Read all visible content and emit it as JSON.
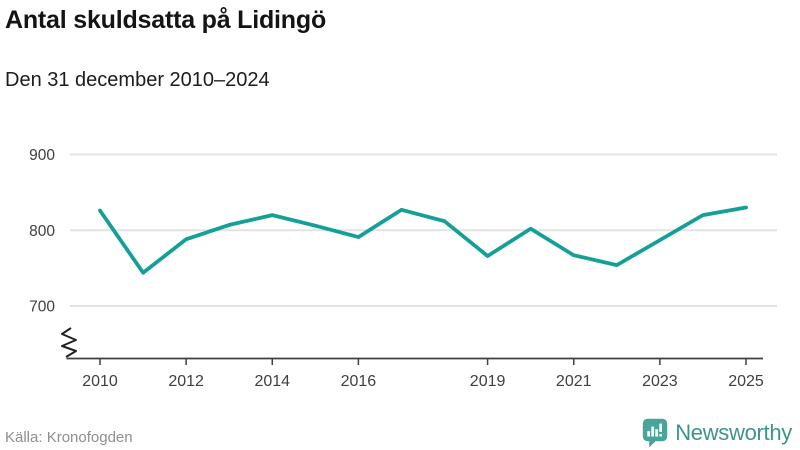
{
  "header": {
    "title": "Antal skuldsatta på Lidingö",
    "subtitle": "Den 31 december 2010–2024"
  },
  "footer": {
    "source": "Källa: Kronofogden",
    "brand": "Newsworthy"
  },
  "colors": {
    "line": "#14a097",
    "brand_teal": "#4aa49a",
    "brand_text": "#3e948b",
    "grid": "#e3e3e3",
    "axis": "#3f3f3f",
    "tick_text": "#404040",
    "muted": "#8e8e8e"
  },
  "chart_data": {
    "type": "line",
    "title": "Antal skuldsatta på Lidingö",
    "subtitle": "Den 31 december 2010–2024",
    "series_name": "Antal skuldsatta",
    "x": [
      2010,
      2011,
      2012,
      2013,
      2014,
      2015,
      2016,
      2017,
      2018,
      2019,
      2020,
      2021,
      2022,
      2023,
      2024,
      2025
    ],
    "values": [
      826,
      744,
      788,
      807,
      820,
      806,
      791,
      827,
      812,
      766,
      802,
      767,
      754,
      787,
      820,
      830
    ],
    "x_ticks": [
      2010,
      2012,
      2014,
      2016,
      2019,
      2021,
      2023,
      2025
    ],
    "x_tick_labels": [
      "2010",
      "2012",
      "2014",
      "2016",
      "2019",
      "2021",
      "2023",
      "2025"
    ],
    "y_ticks": [
      700,
      800,
      900
    ],
    "y_tick_labels": [
      "700",
      "800",
      "900"
    ],
    "ylim": [
      690,
      915
    ],
    "xlabel": "",
    "ylabel": "",
    "grid": "horizontal",
    "axis_break": true,
    "legend": "none",
    "line_color": "#14a097"
  }
}
